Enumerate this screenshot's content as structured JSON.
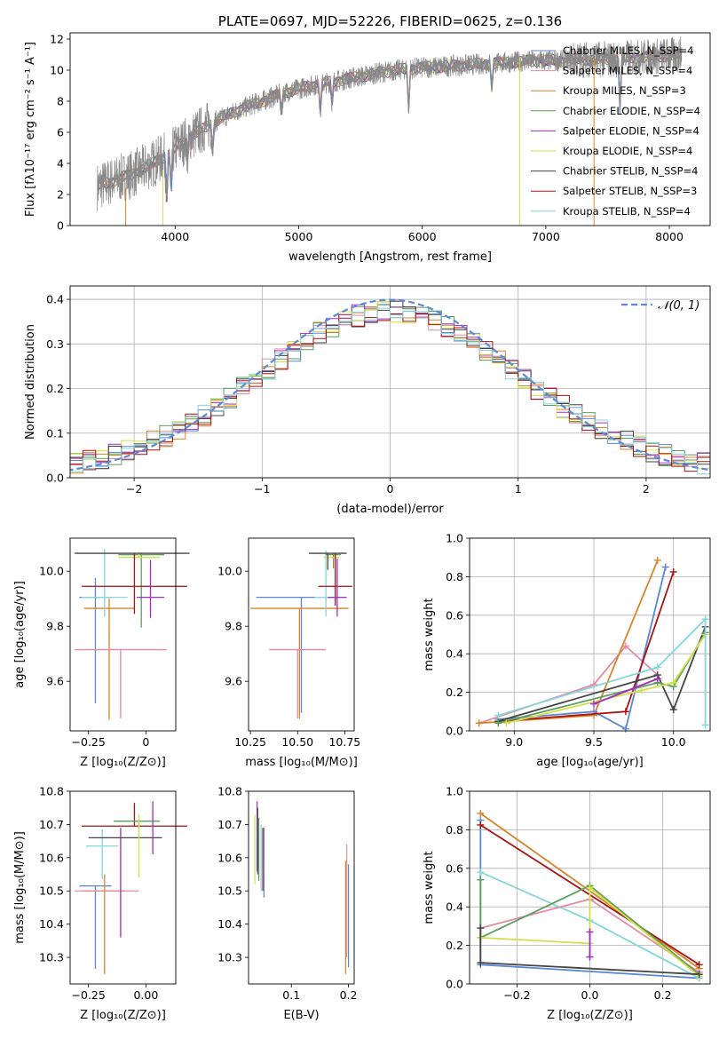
{
  "chart_data": [
    {
      "id": "spectrum",
      "type": "line",
      "title": "PLATE=0697, MJD=52226, FIBERID=0625, z=0.136",
      "xlabel": "wavelength [Angstrom, rest frame]",
      "ylabel": "Flux [fλ10⁻¹⁷ erg cm⁻² s⁻¹ A⁻¹]",
      "xlim": [
        3150,
        8330
      ],
      "ylim": [
        0,
        12.4
      ],
      "xticks": [
        4000,
        5000,
        6000,
        7000,
        8000
      ],
      "yticks": [
        0,
        2,
        4,
        6,
        8,
        10,
        12
      ],
      "grid": false,
      "legend": "upper right",
      "series": [
        {
          "name": "Chabrier MILES, N_SSP=4",
          "color": "#5a87d4"
        },
        {
          "name": "Salpeter MILES, N_SSP=4",
          "color": "#e68aa5"
        },
        {
          "name": "Kroupa MILES, N_SSP=3",
          "color": "#d98429"
        },
        {
          "name": "Chabrier ELODIE, N_SSP=4",
          "color": "#5c9e5c"
        },
        {
          "name": "Salpeter ELODIE, N_SSP=4",
          "color": "#a02fbf"
        },
        {
          "name": "Kroupa ELODIE, N_SSP=4",
          "color": "#d4e04a"
        },
        {
          "name": "Chabrier STELIB, N_SSP=4",
          "color": "#444444"
        },
        {
          "name": "Salpeter STELIB, N_SSP=3",
          "color": "#aa1111"
        },
        {
          "name": "Kroupa STELIB, N_SSP=4",
          "color": "#84d6dc"
        }
      ],
      "data_color": "#888888",
      "continuum_x": [
        3370,
        3500,
        3650,
        3800,
        3950,
        4100,
        4300,
        4500,
        4700,
        4900,
        5100,
        5300,
        5500,
        5700,
        5900,
        6100,
        6300,
        6500,
        6700,
        6900,
        7100,
        7300,
        7500,
        7700,
        7900,
        8100
      ],
      "continuum_y": [
        2.5,
        2.9,
        3.3,
        3.9,
        4.6,
        5.6,
        6.6,
        7.4,
        8.0,
        8.6,
        9.0,
        9.3,
        9.6,
        9.9,
        10.1,
        10.2,
        10.3,
        10.4,
        10.5,
        10.6,
        10.6,
        10.7,
        10.7,
        10.8,
        10.9,
        11.0
      ]
    },
    {
      "id": "residuals",
      "type": "step",
      "xlabel": "(data-model)/error",
      "ylabel": "Normed distribution",
      "xlim": [
        -2.5,
        2.5
      ],
      "ylim": [
        0,
        0.43
      ],
      "xticks": [
        -2,
        -1,
        0,
        1,
        2
      ],
      "yticks": [
        0.0,
        0.1,
        0.2,
        0.3,
        0.4
      ],
      "grid": true,
      "legend": "upper right",
      "reference_curve": {
        "name": "𝒩(0, 1)",
        "color": "#5b8ad8",
        "style": "dashed"
      }
    },
    {
      "id": "age-vs-Z",
      "type": "errorbar",
      "xlabel": "Z [log₁₀(Z/Z⊙)]",
      "ylabel": "age  [log₁₀(age/yr)]",
      "xlim": [
        -0.33,
        0.13
      ],
      "ylim": [
        9.42,
        10.12
      ],
      "xticks": [
        -0.25,
        0.0
      ],
      "ytick_labels": [
        "9.6",
        "9.8",
        "10.0"
      ],
      "yticks": [
        9.6,
        9.8,
        10.0
      ],
      "points": [
        {
          "color": "#5a87d4",
          "x": -0.22,
          "xerr": 0.07,
          "y": 9.905,
          "yerr": [
            0.385,
            0.07
          ]
        },
        {
          "color": "#d98429",
          "x": -0.16,
          "xerr": 0.11,
          "y": 9.865,
          "yerr": [
            0.405,
            0.035
          ]
        },
        {
          "color": "#e68aa5",
          "x": -0.11,
          "xerr": 0.2,
          "y": 9.715,
          "yerr": [
            0.25,
            0.0
          ]
        },
        {
          "color": "#84d6dc",
          "x": -0.18,
          "xerr": 0.1,
          "y": 9.905,
          "yerr": [
            0.07,
            0.175
          ]
        },
        {
          "color": "#5c9e5c",
          "x": -0.02,
          "xerr": 0.1,
          "y": 10.06,
          "yerr": [
            0.265,
            0.005
          ]
        },
        {
          "color": "#d4e04a",
          "x": -0.03,
          "xerr": 0.09,
          "y": 10.05,
          "yerr": [
            0.0,
            0.02
          ]
        },
        {
          "color": "#444444",
          "x": -0.06,
          "xerr": 0.25,
          "y": 10.065,
          "yerr": [
            0.0,
            0.0
          ]
        },
        {
          "color": "#aa1111",
          "x": -0.05,
          "xerr": 0.23,
          "y": 9.945,
          "yerr": [
            0.1,
            0.12
          ]
        },
        {
          "color": "#a02fbf",
          "x": 0.02,
          "xerr": 0.06,
          "y": 9.905,
          "yerr": [
            0.075,
            0.135
          ]
        }
      ]
    },
    {
      "id": "age-vs-mass",
      "type": "errorbar",
      "xlabel": "mass [log₁₀(M/M⊙)]",
      "xlim": [
        10.24,
        10.8
      ],
      "ylim": [
        9.42,
        10.12
      ],
      "xticks": [
        10.25,
        10.5,
        10.75
      ],
      "xtick_labels": [
        "10.25",
        "10.50",
        "10.75"
      ],
      "yticks": [
        9.6,
        9.8,
        10.0
      ],
      "ytick_labels": [
        "9.6",
        "9.8",
        "10.0"
      ],
      "points": [
        {
          "color": "#5a87d4",
          "x": 10.52,
          "xerr": 0.24,
          "y": 9.905,
          "yerr": [
            0.42,
            0.0
          ]
        },
        {
          "color": "#d98429",
          "x": 10.51,
          "xerr": 0.26,
          "y": 9.865,
          "yerr": [
            0.4,
            0.0
          ]
        },
        {
          "color": "#e68aa5",
          "x": 10.5,
          "xerr": 0.15,
          "y": 9.715,
          "yerr": [
            0.25,
            0.0
          ]
        },
        {
          "color": "#84d6dc",
          "x": 10.65,
          "xerr": 0.06,
          "y": 9.905,
          "yerr": [
            0.07,
            0.17
          ]
        },
        {
          "color": "#5c9e5c",
          "x": 10.69,
          "xerr": 0.04,
          "y": 10.06,
          "yerr": [
            0.05,
            0.005
          ]
        },
        {
          "color": "#d4e04a",
          "x": 10.68,
          "xerr": 0.04,
          "y": 10.05,
          "yerr": [
            0.0,
            0.0
          ]
        },
        {
          "color": "#444444",
          "x": 10.66,
          "xerr": 0.1,
          "y": 10.065,
          "yerr": [
            0.06,
            0.0
          ]
        },
        {
          "color": "#aa1111",
          "x": 10.7,
          "xerr": 0.09,
          "y": 9.945,
          "yerr": [
            0.07,
            0.12
          ]
        },
        {
          "color": "#a02fbf",
          "x": 10.71,
          "xerr": 0.05,
          "y": 9.905,
          "yerr": [
            0.07,
            0.14
          ]
        }
      ]
    },
    {
      "id": "weight-vs-age",
      "type": "line",
      "xlabel": "age  [log₁₀(age/yr)]",
      "ylabel": "mass weight",
      "xlim": [
        8.72,
        10.23
      ],
      "ylim": [
        0.0,
        1.0
      ],
      "xticks": [
        9.0,
        9.5,
        10.0
      ],
      "xtick_labels": [
        "9.0",
        "9.5",
        "10.0"
      ],
      "yticks": [
        0.0,
        0.2,
        0.4,
        0.6,
        0.8,
        1.0
      ],
      "ytick_labels": [
        "0.0",
        "0.2",
        "0.4",
        "0.6",
        "0.8",
        "1.0"
      ],
      "grid": true,
      "series": [
        {
          "color": "#e68aa5",
          "x": [
            8.78,
            9.5,
            9.7,
            9.9
          ],
          "y": [
            0.04,
            0.24,
            0.44,
            0.29
          ]
        },
        {
          "color": "#d98429",
          "x": [
            8.78,
            9.5,
            9.9
          ],
          "y": [
            0.04,
            0.08,
            0.885
          ]
        },
        {
          "color": "#5a87d4",
          "x": [
            8.9,
            9.5,
            9.7,
            9.95
          ],
          "y": [
            0.06,
            0.1,
            0.01,
            0.85
          ]
        },
        {
          "color": "#aa1111",
          "x": [
            8.9,
            9.7,
            10.0
          ],
          "y": [
            0.05,
            0.1,
            0.825
          ]
        },
        {
          "color": "#444444",
          "x": [
            8.9,
            9.9,
            10.0,
            10.2
          ],
          "y": [
            0.05,
            0.29,
            0.11,
            0.54
          ]
        },
        {
          "color": "#5c9e5c",
          "x": [
            8.9,
            9.9,
            10.0,
            10.2
          ],
          "y": [
            0.04,
            0.25,
            0.23,
            0.51
          ]
        },
        {
          "color": "#d4e04a",
          "x": [
            8.95,
            9.8,
            10.0,
            10.2
          ],
          "y": [
            0.04,
            0.21,
            0.25,
            0.5
          ]
        },
        {
          "color": "#a02fbf",
          "x": [
            9.5,
            9.9
          ],
          "y": [
            0.14,
            0.27
          ]
        },
        {
          "color": "#84d6dc",
          "x": [
            8.9,
            9.9,
            10.2,
            10.2
          ],
          "y": [
            0.08,
            0.33,
            0.58,
            0.03
          ]
        }
      ]
    },
    {
      "id": "mass-vs-Z",
      "type": "errorbar",
      "xlabel": "Z [log₁₀(Z/Z⊙)]",
      "ylabel": "mass [log₁₀(M/M⊙)]",
      "xlim": [
        -0.33,
        0.13
      ],
      "ylim": [
        10.22,
        10.8
      ],
      "xticks": [
        -0.25,
        0.0
      ],
      "xtick_labels": [
        "−0.25",
        "0.00"
      ],
      "yticks": [
        10.3,
        10.4,
        10.5,
        10.6,
        10.7,
        10.8
      ],
      "ytick_labels": [
        "10.3",
        "10.4",
        "10.5",
        "10.6",
        "10.7",
        "10.8"
      ],
      "points": [
        {
          "color": "#5a87d4",
          "x": -0.22,
          "xerr": 0.07,
          "y": 10.515,
          "yerr": [
            0.25,
            0.0
          ]
        },
        {
          "color": "#d98429",
          "x": -0.18,
          "xerr": 0.09,
          "y": 10.5,
          "yerr": [
            0.25,
            0.05
          ]
        },
        {
          "color": "#e68aa5",
          "x": -0.17,
          "xerr": 0.14,
          "y": 10.5,
          "yerr": [
            0.0,
            0.0
          ]
        },
        {
          "color": "#84d6dc",
          "x": -0.19,
          "xerr": 0.07,
          "y": 10.635,
          "yerr": [
            0.1,
            0.05
          ]
        },
        {
          "color": "#a02fbf",
          "x": -0.11,
          "xerr": 0.0,
          "y": 10.5,
          "yerr": [
            0.14,
            0.19
          ]
        },
        {
          "color": "#aa1111",
          "x": -0.05,
          "xerr": 0.23,
          "y": 10.695,
          "yerr": [
            0.0,
            0.07
          ]
        },
        {
          "color": "#444444",
          "x": -0.09,
          "xerr": 0.16,
          "y": 10.66,
          "yerr": [
            0.0,
            0.0
          ]
        },
        {
          "color": "#5c9e5c",
          "x": -0.04,
          "xerr": 0.1,
          "y": 10.71,
          "yerr": [
            0.0,
            0.0
          ]
        },
        {
          "color": "#d4e04a",
          "x": -0.03,
          "xerr": 0.0,
          "y": 10.64,
          "yerr": [
            0.1,
            0.09
          ]
        },
        {
          "color": "#a02fbf",
          "x": 0.03,
          "xerr": 0.0,
          "y": 10.67,
          "yerr": [
            0.06,
            0.1
          ]
        }
      ]
    },
    {
      "id": "mass-vs-EBV",
      "type": "errorbar",
      "xlabel": "E(B-V)",
      "xlim": [
        0.025,
        0.21
      ],
      "ylim": [
        10.22,
        10.8
      ],
      "xticks": [
        0.1,
        0.2
      ],
      "xtick_labels": [
        "0.1",
        "0.2"
      ],
      "yticks": [
        10.3,
        10.4,
        10.5,
        10.6,
        10.7,
        10.8
      ],
      "ytick_labels": [
        "10.3",
        "10.4",
        "10.5",
        "10.6",
        "10.7",
        "10.8"
      ],
      "points": [
        {
          "color": "#d4e04a",
          "x": 0.036,
          "yl": 10.52,
          "yh": 10.73
        },
        {
          "color": "#a02fbf",
          "x": 0.04,
          "yl": 10.56,
          "yh": 10.77
        },
        {
          "color": "#444444",
          "x": 0.041,
          "yl": 10.55,
          "yh": 10.75
        },
        {
          "color": "#5c9e5c",
          "x": 0.043,
          "yl": 10.53,
          "yh": 10.72
        },
        {
          "color": "#84d6dc",
          "x": 0.047,
          "yl": 10.5,
          "yh": 10.7
        },
        {
          "color": "#aa1111",
          "x": 0.05,
          "yl": 10.5,
          "yh": 10.69
        },
        {
          "color": "#5a87d4",
          "x": 0.052,
          "yl": 10.48,
          "yh": 10.69
        },
        {
          "color": "#d98429",
          "x": 0.195,
          "yl": 10.25,
          "yh": 10.59
        },
        {
          "color": "#e68aa5",
          "x": 0.197,
          "yl": 10.3,
          "yh": 10.64
        },
        {
          "color": "#5a87d4",
          "x": 0.2,
          "yl": 10.27,
          "yh": 10.58
        }
      ]
    },
    {
      "id": "weight-vs-Z",
      "type": "line",
      "xlabel": "Z [log₁₀(Z/Z⊙)]",
      "ylabel": "mass weight",
      "xlim": [
        -0.33,
        0.33
      ],
      "ylim": [
        0.0,
        1.0
      ],
      "xticks": [
        -0.2,
        0.0,
        0.2
      ],
      "xtick_labels": [
        "−0.2",
        "0.0",
        "0.2"
      ],
      "yticks": [
        0.0,
        0.2,
        0.4,
        0.6,
        0.8,
        1.0
      ],
      "ytick_labels": [
        "0.0",
        "0.2",
        "0.4",
        "0.6",
        "0.8",
        "1.0"
      ],
      "grid": true,
      "series": [
        {
          "color": "#5a87d4",
          "x": [
            -0.3,
            -0.3,
            0.3
          ],
          "y": [
            0.85,
            0.1,
            0.03
          ]
        },
        {
          "color": "#d98429",
          "x": [
            -0.3,
            0.3
          ],
          "y": [
            0.885,
            0.08
          ]
        },
        {
          "color": "#aa1111",
          "x": [
            -0.3,
            0.3
          ],
          "y": [
            0.825,
            0.1
          ]
        },
        {
          "color": "#84d6dc",
          "x": [
            -0.3,
            0.0,
            0.3,
            0.3
          ],
          "y": [
            0.58,
            0.33,
            0.03,
            0.05
          ]
        },
        {
          "color": "#e68aa5",
          "x": [
            -0.3,
            0.0,
            0.3
          ],
          "y": [
            0.29,
            0.44,
            0.06
          ]
        },
        {
          "color": "#5c9e5c",
          "x": [
            -0.3,
            -0.3,
            0.0,
            0.3
          ],
          "y": [
            0.54,
            0.24,
            0.51,
            0.05
          ]
        },
        {
          "color": "#d4e04a",
          "x": [
            -0.3,
            0.0,
            0.0,
            0.3
          ],
          "y": [
            0.24,
            0.21,
            0.5,
            0.04
          ]
        },
        {
          "color": "#444444",
          "x": [
            -0.3,
            -0.3,
            0.3
          ],
          "y": [
            0.29,
            0.11,
            0.05
          ]
        },
        {
          "color": "#a02fbf",
          "x": [
            0.0,
            0.0
          ],
          "y": [
            0.14,
            0.27
          ]
        }
      ]
    }
  ]
}
